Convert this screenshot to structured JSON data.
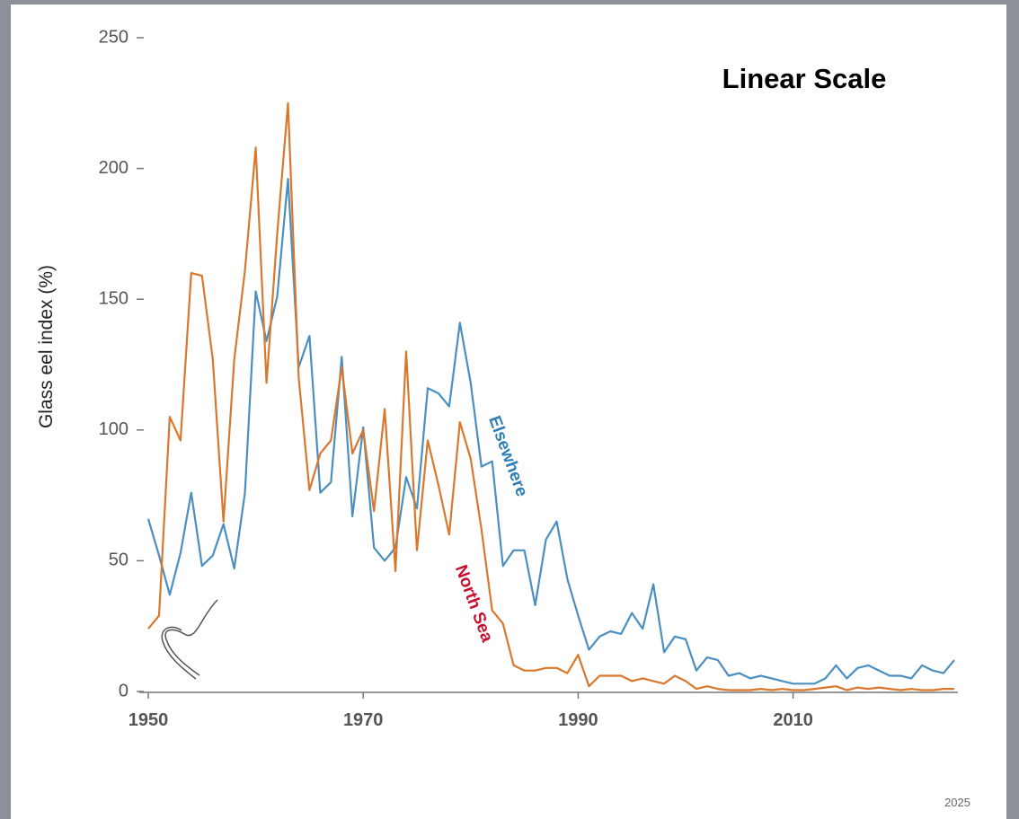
{
  "chart_data": {
    "type": "line",
    "title": "Linear Scale",
    "y_label": "Glass eel index (%)",
    "footnote": "2025",
    "x": [
      1950,
      1951,
      1952,
      1953,
      1954,
      1955,
      1956,
      1957,
      1958,
      1959,
      1960,
      1961,
      1962,
      1963,
      1964,
      1965,
      1966,
      1967,
      1968,
      1969,
      1970,
      1971,
      1972,
      1973,
      1974,
      1975,
      1976,
      1977,
      1978,
      1979,
      1980,
      1981,
      1982,
      1983,
      1984,
      1985,
      1986,
      1987,
      1988,
      1989,
      1990,
      1991,
      1992,
      1993,
      1994,
      1995,
      1996,
      1997,
      1998,
      1999,
      2000,
      2001,
      2002,
      2003,
      2004,
      2005,
      2006,
      2007,
      2008,
      2009,
      2010,
      2011,
      2012,
      2013,
      2014,
      2015,
      2016,
      2017,
      2018,
      2019,
      2020,
      2021,
      2022,
      2023,
      2024,
      2025
    ],
    "series": [
      {
        "name": "Elsewhere",
        "color": "#4a8fc0",
        "values": [
          66,
          52,
          37,
          53,
          76,
          48,
          52,
          64,
          47,
          76,
          153,
          134,
          151,
          196,
          124,
          136,
          76,
          80,
          128,
          67,
          101,
          55,
          50,
          55,
          82,
          70,
          116,
          114,
          109,
          141,
          118,
          86,
          88,
          48,
          54,
          54,
          33,
          58,
          65,
          43,
          29,
          16,
          21,
          23,
          22,
          30,
          24,
          41,
          15,
          21,
          20,
          8,
          13,
          12,
          6,
          7,
          5,
          6,
          5,
          4,
          3,
          3,
          3,
          5,
          10,
          5,
          9,
          10,
          8,
          6,
          6,
          5,
          10,
          8,
          7,
          12
        ]
      },
      {
        "name": "North Sea",
        "color": "#d9782d",
        "values": [
          24,
          29,
          105,
          96,
          160,
          159,
          127,
          65,
          127,
          161,
          208,
          118,
          175,
          225,
          120,
          77,
          91,
          96,
          124,
          91,
          100,
          69,
          108,
          46,
          130,
          54,
          96,
          79,
          60,
          103,
          89,
          62,
          31,
          26,
          10,
          8,
          8,
          9,
          9,
          7,
          14,
          2,
          6,
          6,
          6,
          4,
          5,
          4,
          3,
          6,
          4,
          1,
          2,
          1,
          0.5,
          0.5,
          0.5,
          1,
          0.5,
          1,
          0.5,
          0.5,
          1,
          1.5,
          2,
          0.5,
          1.5,
          1,
          1.5,
          1,
          0.5,
          1,
          0.5,
          0.5,
          1,
          1
        ]
      }
    ],
    "annotations": [
      {
        "text": "Elsewhere",
        "color": "#2f7fb5"
      },
      {
        "text": "North Sea",
        "color": "#c8102e"
      }
    ],
    "xlim": [
      1950,
      2025
    ],
    "xticks": [
      1950,
      1970,
      1990,
      2010
    ],
    "ylim": [
      0,
      250
    ],
    "yticks": [
      0,
      50,
      100,
      150,
      200,
      250
    ],
    "grid": false
  }
}
